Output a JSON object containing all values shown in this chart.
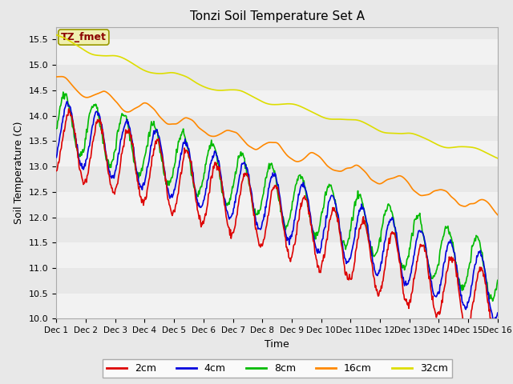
{
  "title": "Tonzi Soil Temperature Set A",
  "xlabel": "Time",
  "ylabel": "Soil Temperature (C)",
  "ylim": [
    10.0,
    15.75
  ],
  "xlim_days": [
    0,
    15
  ],
  "annotation": "TZ_fmet",
  "legend_labels": [
    "2cm",
    "4cm",
    "8cm",
    "16cm",
    "32cm"
  ],
  "legend_colors": [
    "#dd0000",
    "#0000dd",
    "#00bb00",
    "#ff8800",
    "#dddd00"
  ],
  "xtick_labels": [
    "Dec 1",
    "Dec 2",
    "Dec 3",
    "Dec 4",
    "Dec 5",
    "Dec 6",
    "Dec 7",
    "Dec 8",
    "Dec 9",
    "Dec 10",
    "Dec 11",
    "Dec 12",
    "Dec 13",
    "Dec 14",
    "Dec 15",
    "Dec 16"
  ],
  "background_color": "#e8e8e8",
  "stripe_color": "#f2f2f2",
  "ytick_positions": [
    10.0,
    10.5,
    11.0,
    11.5,
    12.0,
    12.5,
    13.0,
    13.5,
    14.0,
    14.5,
    15.0,
    15.5
  ],
  "line_width": 1.2
}
